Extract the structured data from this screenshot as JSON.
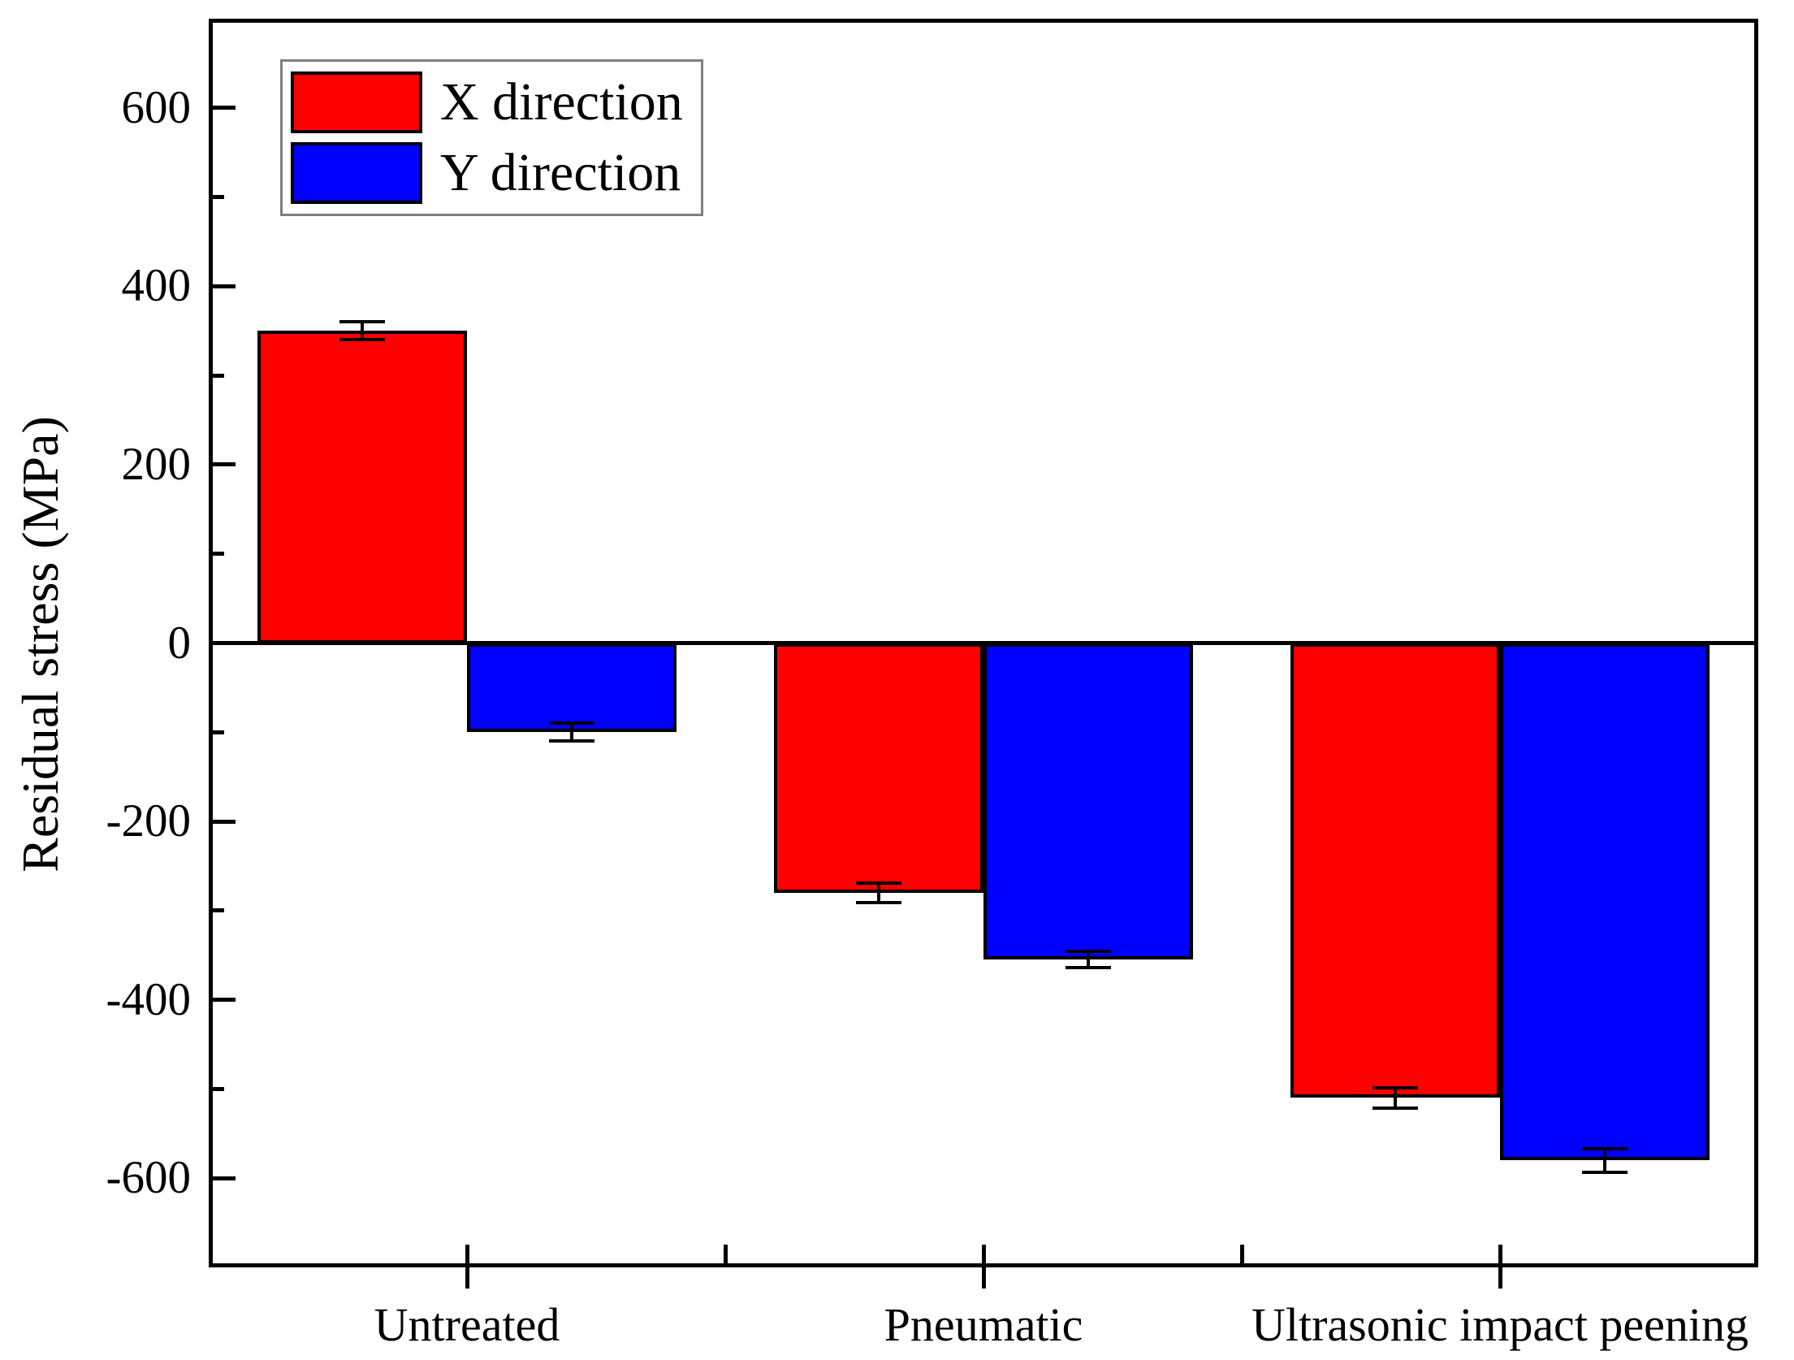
{
  "figure": {
    "y_axis_title": "Residual stress (MPa)"
  },
  "chart_data": {
    "type": "bar",
    "title": "",
    "xlabel": "",
    "ylabel": "Residual stress (MPa)",
    "categories": [
      "Untreated",
      "Pneumatic",
      "Ultrasonic impact peening"
    ],
    "series": [
      {
        "name": "X direction",
        "color": "#ff0000",
        "values": [
          350,
          -280,
          -510
        ],
        "errors": [
          10,
          11,
          11
        ]
      },
      {
        "name": "Y direction",
        "color": "#0000ff",
        "values": [
          -100,
          -355,
          -580
        ],
        "errors": [
          10,
          9,
          13
        ]
      }
    ],
    "ylim": [
      -700,
      700
    ],
    "y_major_ticks": [
      600,
      400,
      200,
      0,
      -200,
      -400,
      -600
    ],
    "y_minor_tick_step": 100,
    "grid": false,
    "legend_position": "top-left",
    "legend_entries": [
      "X direction",
      "Y direction"
    ],
    "error_bar_color": "#000000",
    "bar_edge_color": "#000000",
    "zero_line": true
  }
}
